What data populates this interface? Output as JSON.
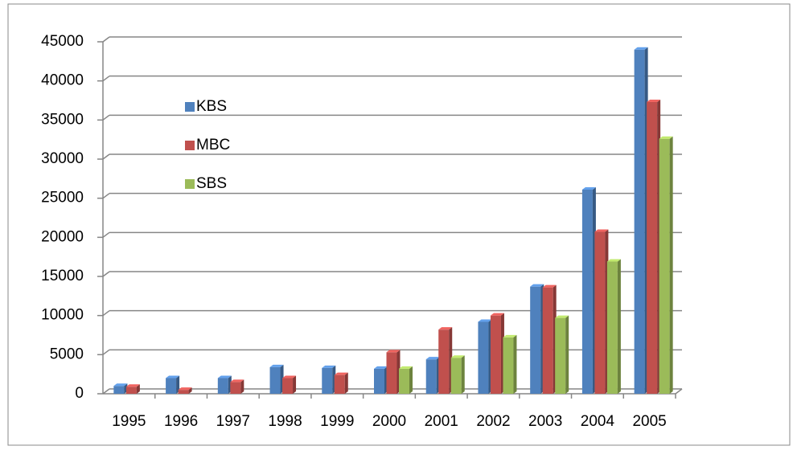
{
  "chart_data": {
    "type": "bar",
    "categories": [
      "1995",
      "1996",
      "1997",
      "1998",
      "1999",
      "2000",
      "2001",
      "2002",
      "2003",
      "2004",
      "2005"
    ],
    "series": [
      {
        "name": "KBS",
        "color": "#4f81bd",
        "values": [
          1000,
          2000,
          2000,
          3400,
          3300,
          3200,
          4400,
          9200,
          13700,
          26100,
          44000
        ]
      },
      {
        "name": "MBC",
        "color": "#c0504d",
        "values": [
          900,
          500,
          1500,
          2000,
          2400,
          5300,
          8200,
          10000,
          13600,
          20700,
          37300
        ]
      },
      {
        "name": "SBS",
        "color": "#9bbb59",
        "values": [
          null,
          null,
          null,
          null,
          null,
          3200,
          4600,
          7200,
          9700,
          16900,
          32600
        ]
      }
    ],
    "ylim": [
      0,
      45000
    ],
    "yticks": [
      0,
      5000,
      10000,
      15000,
      20000,
      25000,
      30000,
      35000,
      40000,
      45000
    ],
    "grid": true,
    "legend": "upper-left"
  }
}
